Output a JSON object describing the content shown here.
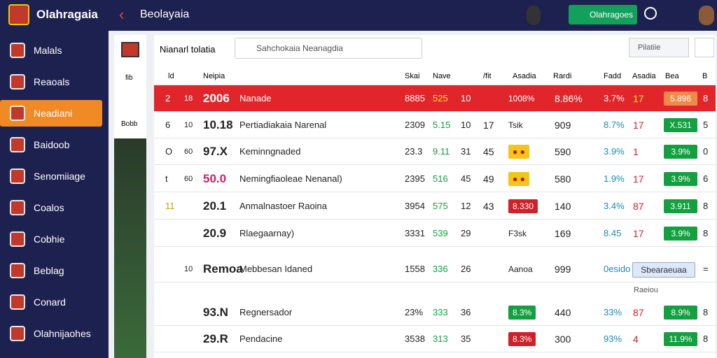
{
  "header": {
    "brand": "Olahragaia",
    "title": "Beolayaia",
    "button": "Olahragoes"
  },
  "sidebar": {
    "items": [
      "Malals",
      "Reaoals",
      "Neadiani",
      "Baidoob",
      "Senomiiage",
      "Coalos",
      "Cobhie",
      "Beblag",
      "Conard",
      "Olahnijaohes"
    ],
    "active": 2
  },
  "side_panel": {
    "labels": [
      "fib",
      "Bobb"
    ]
  },
  "toolbar": {
    "label": "Nianarl tolatia",
    "search": "Sahchokaia Neanagdia",
    "dropdown": "Pilatiie"
  },
  "table": {
    "headers": [
      "ld",
      "Neipia",
      "Skai",
      "Nave",
      "/fit",
      "Asadia",
      "Rardi",
      "Fadd",
      "Asadia",
      "Bea",
      "B"
    ],
    "rows": [
      {
        "rank": "2",
        "num": "18",
        "score": "2006",
        "name": "Nanade",
        "a": "8885",
        "b": "525",
        "c": "10",
        "badge": "1008%",
        "v": "8.86%",
        "pct": "3.7%",
        "w": "17",
        "pill": "5.896",
        "end": "8"
      },
      {
        "rank": "6",
        "num": "10",
        "score": "10.18",
        "name": "Pertiadiakaia Narenal",
        "a": "2309",
        "b": "5.15",
        "c": "10",
        "icon": "17",
        "badge": "Tsik",
        "v": "909",
        "pct": "8.7%",
        "w": "17",
        "pill": "X.531",
        "end": "5"
      },
      {
        "rank": "O",
        "num": "60",
        "score": "97.X",
        "name": "Keminngnaded",
        "a": "23.3",
        "b": "9.11",
        "c": "31",
        "icon": "45",
        "badge": "● ●",
        "v": "590",
        "pct": "3.9%",
        "w": "1",
        "pill": "3.9%",
        "end": "0"
      },
      {
        "rank": "t",
        "num": "60",
        "score": "50.0",
        "name": "Nemingfiaoleae Nenanal)",
        "a": "2395",
        "b": "516",
        "c": "45",
        "icon": "49",
        "badge": "● ●",
        "v": "580",
        "pct": "1.9%",
        "w": "17",
        "pill": "3.9%",
        "end": "6"
      },
      {
        "rank": "11",
        "score": "20.1",
        "name": "Anmalnastoer Raoina",
        "a": "3954",
        "b": "575",
        "c": "12",
        "icon": "43",
        "badge": "8.330",
        "v": "140",
        "pct": "3.4%",
        "w": "87",
        "pill": "3.911",
        "end": "8"
      },
      {
        "score": "20.9",
        "name": "Rlaegaarnay)",
        "a": "3331",
        "b": "539",
        "c": "29",
        "badge": "F3sk",
        "v": "169",
        "pct": "8.45",
        "w": "17",
        "pill": "3.9%",
        "end": "8"
      },
      {
        "num": "10",
        "score": "Remoa",
        "name": "Mebbesan Idaned",
        "a": "1558",
        "b": "336",
        "c": "26",
        "badge": "Aanoa",
        "v": "999",
        "pct": "0esido",
        "pill": "Sbearaeuaa",
        "end": "=",
        "note": "Raeiou"
      },
      {
        "score": "93.N",
        "name": "Regnersador",
        "a": "23%",
        "b": "333",
        "c": "36",
        "badge": "8.3%",
        "v": "440",
        "pct": "33%",
        "w": "87",
        "pill": "8.9%",
        "end": "8"
      },
      {
        "score": "29.R",
        "name": "Pendacine",
        "a": "3538",
        "b": "313",
        "c": "35",
        "badge": "8.3%",
        "v": "300",
        "pct": "93%",
        "w": "4",
        "pill": "11.9%",
        "end": "8"
      }
    ]
  }
}
